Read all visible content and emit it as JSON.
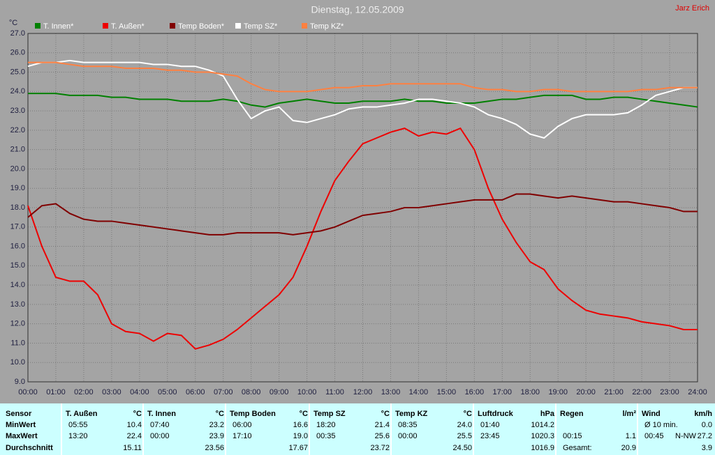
{
  "chart_data": {
    "type": "line",
    "title": "Dienstag, 12.05.2009",
    "author": "Jarz Erich",
    "y_label": "°C",
    "xlim": [
      0,
      24
    ],
    "xticks": [
      {
        "value": 0,
        "label": "00:00"
      },
      {
        "value": 1,
        "label": "01:00"
      },
      {
        "value": 2,
        "label": "02:00"
      },
      {
        "value": 3,
        "label": "03:00"
      },
      {
        "value": 4,
        "label": "04:00"
      },
      {
        "value": 5,
        "label": "05:00"
      },
      {
        "value": 6,
        "label": "06:00"
      },
      {
        "value": 7,
        "label": "07:00"
      },
      {
        "value": 8,
        "label": "08:00"
      },
      {
        "value": 9,
        "label": "09:00"
      },
      {
        "value": 10,
        "label": "10:00"
      },
      {
        "value": 11,
        "label": "11:00"
      },
      {
        "value": 12,
        "label": "12:00"
      },
      {
        "value": 13,
        "label": "13:00"
      },
      {
        "value": 14,
        "label": "14:00"
      },
      {
        "value": 15,
        "label": "15:00"
      },
      {
        "value": 16,
        "label": "16:00"
      },
      {
        "value": 17,
        "label": "17:00"
      },
      {
        "value": 18,
        "label": "18:00"
      },
      {
        "value": 19,
        "label": "19:00"
      },
      {
        "value": 20,
        "label": "20:00"
      },
      {
        "value": 21,
        "label": "21:00"
      },
      {
        "value": 22,
        "label": "22:00"
      },
      {
        "value": 23,
        "label": "23:00"
      },
      {
        "value": 24,
        "label": "24:00"
      }
    ],
    "ylim": [
      9,
      27
    ],
    "yticks": [
      {
        "value": 9,
        "label": "9.0"
      },
      {
        "value": 10,
        "label": "10.0"
      },
      {
        "value": 11,
        "label": "11.0"
      },
      {
        "value": 12,
        "label": "12.0"
      },
      {
        "value": 13,
        "label": "13.0"
      },
      {
        "value": 14,
        "label": "14.0"
      },
      {
        "value": 15,
        "label": "15.0"
      },
      {
        "value": 16,
        "label": "16.0"
      },
      {
        "value": 17,
        "label": "17.0"
      },
      {
        "value": 18,
        "label": "18.0"
      },
      {
        "value": 19,
        "label": "19.0"
      },
      {
        "value": 20,
        "label": "20.0"
      },
      {
        "value": 21,
        "label": "21.0"
      },
      {
        "value": 22,
        "label": "22.0"
      },
      {
        "value": 23,
        "label": "23.0"
      },
      {
        "value": 24,
        "label": "24.0"
      },
      {
        "value": 25,
        "label": "25.0"
      },
      {
        "value": 26,
        "label": "26.0"
      },
      {
        "value": 27,
        "label": "27.0"
      }
    ],
    "grid": true,
    "x": [
      0,
      0.5,
      1,
      1.5,
      2,
      2.5,
      3,
      3.5,
      4,
      4.5,
      5,
      5.5,
      6,
      6.5,
      7,
      7.5,
      8,
      8.5,
      9,
      9.5,
      10,
      10.5,
      11,
      11.5,
      12,
      12.5,
      13,
      13.5,
      14,
      14.5,
      15,
      15.5,
      16,
      16.5,
      17,
      17.5,
      18,
      18.5,
      19,
      19.5,
      20,
      20.5,
      21,
      21.5,
      22,
      22.5,
      23,
      23.5,
      24
    ],
    "series": [
      {
        "name": "T. Innen*",
        "color": "#008000",
        "values": [
          23.9,
          23.9,
          23.9,
          23.8,
          23.8,
          23.8,
          23.7,
          23.7,
          23.6,
          23.6,
          23.6,
          23.5,
          23.5,
          23.5,
          23.6,
          23.5,
          23.3,
          23.2,
          23.4,
          23.5,
          23.6,
          23.5,
          23.4,
          23.4,
          23.5,
          23.5,
          23.5,
          23.6,
          23.5,
          23.5,
          23.4,
          23.4,
          23.4,
          23.5,
          23.6,
          23.6,
          23.7,
          23.8,
          23.8,
          23.8,
          23.6,
          23.6,
          23.7,
          23.7,
          23.6,
          23.5,
          23.4,
          23.3,
          23.2
        ]
      },
      {
        "name": "T. Außen*",
        "color": "#ee0000",
        "values": [
          18.1,
          16.0,
          14.4,
          14.2,
          14.2,
          13.5,
          12.0,
          11.6,
          11.5,
          11.1,
          11.5,
          11.4,
          10.7,
          10.9,
          11.2,
          11.7,
          12.3,
          12.9,
          13.5,
          14.4,
          16.0,
          17.8,
          19.4,
          20.4,
          21.3,
          21.6,
          21.9,
          22.1,
          21.7,
          21.9,
          21.8,
          22.1,
          21.0,
          19.0,
          17.4,
          16.2,
          15.2,
          14.8,
          13.8,
          13.2,
          12.7,
          12.5,
          12.4,
          12.3,
          12.1,
          12.0,
          11.9,
          11.7,
          11.7
        ]
      },
      {
        "name": "Temp Boden*",
        "color": "#800000",
        "values": [
          17.5,
          18.1,
          18.2,
          17.7,
          17.4,
          17.3,
          17.3,
          17.2,
          17.1,
          17.0,
          16.9,
          16.8,
          16.7,
          16.6,
          16.6,
          16.7,
          16.7,
          16.7,
          16.7,
          16.6,
          16.7,
          16.8,
          17.0,
          17.3,
          17.6,
          17.7,
          17.8,
          18.0,
          18.0,
          18.1,
          18.2,
          18.3,
          18.4,
          18.4,
          18.4,
          18.7,
          18.7,
          18.6,
          18.5,
          18.6,
          18.5,
          18.4,
          18.3,
          18.3,
          18.2,
          18.1,
          18.0,
          17.8,
          17.8
        ]
      },
      {
        "name": "Temp SZ*",
        "color": "#ffffff",
        "values": [
          25.3,
          25.5,
          25.5,
          25.6,
          25.5,
          25.5,
          25.5,
          25.5,
          25.5,
          25.4,
          25.4,
          25.3,
          25.3,
          25.1,
          24.8,
          23.6,
          22.6,
          23.0,
          23.2,
          22.5,
          22.4,
          22.6,
          22.8,
          23.1,
          23.2,
          23.2,
          23.3,
          23.4,
          23.6,
          23.6,
          23.5,
          23.4,
          23.2,
          22.8,
          22.6,
          22.3,
          21.8,
          21.6,
          22.2,
          22.6,
          22.8,
          22.8,
          22.8,
          22.9,
          23.3,
          23.8,
          24.0,
          24.2,
          24.2
        ]
      },
      {
        "name": "Temp KZ*",
        "color": "#ff8040",
        "values": [
          25.5,
          25.5,
          25.5,
          25.4,
          25.3,
          25.3,
          25.3,
          25.2,
          25.2,
          25.2,
          25.1,
          25.1,
          25.0,
          25.0,
          24.9,
          24.8,
          24.4,
          24.1,
          24.0,
          24.0,
          24.0,
          24.1,
          24.2,
          24.2,
          24.3,
          24.3,
          24.4,
          24.4,
          24.4,
          24.4,
          24.4,
          24.4,
          24.2,
          24.1,
          24.1,
          24.0,
          24.0,
          24.1,
          24.1,
          24.0,
          24.0,
          24.0,
          24.0,
          24.0,
          24.1,
          24.1,
          24.2,
          24.2,
          24.2
        ]
      }
    ]
  },
  "table": {
    "row_labels": [
      "Sensor",
      "MinWert",
      "MaxWert",
      "Durchschnitt"
    ],
    "columns": [
      {
        "header": "T. Außen",
        "unit": "°C",
        "cells": [
          {
            "left": "05:55",
            "right": "10.4"
          },
          {
            "left": "13:20",
            "right": "22.4"
          },
          {
            "right": "15.11"
          }
        ]
      },
      {
        "header": "T. Innen",
        "unit": "°C",
        "cells": [
          {
            "left": "07:40",
            "right": "23.2"
          },
          {
            "left": "00:00",
            "right": "23.9"
          },
          {
            "right": "23.56"
          }
        ]
      },
      {
        "header": "Temp Boden",
        "unit": "°C",
        "cells": [
          {
            "left": "06:00",
            "right": "16.6"
          },
          {
            "left": "17:10",
            "right": "19.0"
          },
          {
            "right": "17.67"
          }
        ]
      },
      {
        "header": "Temp SZ",
        "unit": "°C",
        "cells": [
          {
            "left": "18:20",
            "right": "21.4"
          },
          {
            "left": "00:35",
            "right": "25.6"
          },
          {
            "right": "23.72"
          }
        ]
      },
      {
        "header": "Temp KZ",
        "unit": "°C",
        "cells": [
          {
            "left": "08:35",
            "right": "24.0"
          },
          {
            "left": "00:00",
            "right": "25.5"
          },
          {
            "right": "24.50"
          }
        ]
      },
      {
        "header": "Luftdruck",
        "unit": "hPa",
        "cells": [
          {
            "left": "01:40",
            "right": "1014.2"
          },
          {
            "left": "23:45",
            "right": "1020.3"
          },
          {
            "right": "1016.9"
          }
        ]
      },
      {
        "header": "Regen",
        "unit": "l/m²",
        "cells": [
          null,
          {
            "left": "00:15",
            "right": "1.1"
          },
          {
            "left": "Gesamt:",
            "right": "20.9"
          }
        ]
      },
      {
        "header": "Wind",
        "unit": "km/h",
        "cells": [
          {
            "left": "Ø 10 min.",
            "right": "0.0"
          },
          {
            "left": "00:45",
            "mid": "N-NW",
            "right": "27.2"
          },
          {
            "right": "3.9"
          }
        ]
      }
    ]
  }
}
